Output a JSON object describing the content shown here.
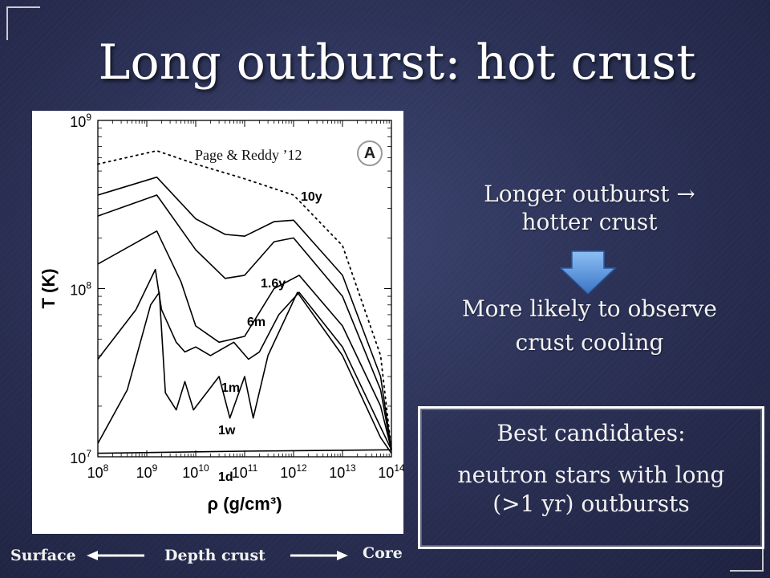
{
  "slide": {
    "title": "Long outburst: hot crust",
    "citation": "Page & Reddy ’12",
    "panel_badge": "A",
    "text_lines": [
      "Longer outburst →",
      "hotter crust",
      "More likely to observe",
      "crust cooling"
    ],
    "candidates": {
      "title": "Best candidates:",
      "line1": "neutron stars with long",
      "line2": "(>1 yr) outbursts"
    },
    "bottom_labels": {
      "surface": "Surface",
      "depth": "Depth crust",
      "core": "Core"
    },
    "colors": {
      "background": "#2c3257",
      "arrow_fill": "#4f8ed8",
      "text": "#ffffff"
    }
  },
  "chart_data": {
    "type": "line",
    "xlabel": "ρ (g/cm³)",
    "ylabel": "T (K)",
    "x_scale": "log",
    "y_scale": "log",
    "xlim": [
      100000000.0,
      100000000000000.0
    ],
    "ylim": [
      10000000.0,
      1000000000.0
    ],
    "x_tick_labels": [
      "10^8",
      "10^9",
      "10^10",
      "10^11",
      "10^12",
      "10^13",
      "10^14"
    ],
    "y_tick_labels": [
      "10^7",
      "10^8",
      "10^9"
    ],
    "series": [
      {
        "name": "10y",
        "style": "dotted",
        "points": [
          [
            100000000.0,
            550000000.0
          ],
          [
            1600000000.0,
            660000000.0
          ],
          [
            10000000000.0,
            550000000.0
          ],
          [
            100000000000.0,
            450000000.0
          ],
          [
            1000000000000.0,
            360000000.0
          ],
          [
            10000000000000.0,
            180000000.0
          ],
          [
            60000000000000.0,
            40000000.0
          ],
          [
            100000000000000.0,
            11000000.0
          ]
        ]
      },
      {
        "name": "1.6y",
        "style": "solid",
        "points": [
          [
            100000000.0,
            360000000.0
          ],
          [
            1600000000.0,
            460000000.0
          ],
          [
            10000000000.0,
            260000000.0
          ],
          [
            40000000000.0,
            210000000.0
          ],
          [
            100000000000.0,
            205000000.0
          ],
          [
            400000000000.0,
            250000000.0
          ],
          [
            1000000000000.0,
            255000000.0
          ],
          [
            10000000000000.0,
            120000000.0
          ],
          [
            60000000000000.0,
            30000000.0
          ],
          [
            100000000000000.0,
            11000000.0
          ]
        ]
      },
      {
        "name": "6m",
        "style": "solid",
        "points": [
          [
            100000000.0,
            270000000.0
          ],
          [
            1600000000.0,
            360000000.0
          ],
          [
            10000000000.0,
            170000000.0
          ],
          [
            40000000000.0,
            115000000.0
          ],
          [
            100000000000.0,
            120000000.0
          ],
          [
            400000000000.0,
            190000000.0
          ],
          [
            1000000000000.0,
            200000000.0
          ],
          [
            10000000000000.0,
            90000000.0
          ],
          [
            60000000000000.0,
            25000000.0
          ],
          [
            100000000000000.0,
            11000000.0
          ]
        ]
      },
      {
        "name": "1m",
        "style": "solid",
        "points": [
          [
            100000000.0,
            140000000.0
          ],
          [
            1600000000.0,
            220000000.0
          ],
          [
            5000000000.0,
            110000000.0
          ],
          [
            10000000000.0,
            60000000.0
          ],
          [
            30000000000.0,
            48000000.0
          ],
          [
            100000000000.0,
            52000000.0
          ],
          [
            400000000000.0,
            100000000.0
          ],
          [
            1300000000000.0,
            120000000.0
          ],
          [
            10000000000000.0,
            60000000.0
          ],
          [
            60000000000000.0,
            20000000.0
          ],
          [
            100000000000000.0,
            11000000.0
          ]
        ]
      },
      {
        "name": "1w",
        "style": "solid",
        "points": [
          [
            100000000.0,
            38000000.0
          ],
          [
            600000000.0,
            75000000.0
          ],
          [
            1500000000.0,
            130000000.0
          ],
          [
            2000000000.0,
            75000000.0
          ],
          [
            4000000000.0,
            48000000.0
          ],
          [
            6000000000.0,
            42000000.0
          ],
          [
            10000000000.0,
            45000000.0
          ],
          [
            20000000000.0,
            40000000.0
          ],
          [
            60000000000.0,
            48000000.0
          ],
          [
            120000000000.0,
            38000000.0
          ],
          [
            200000000000.0,
            42000000.0
          ],
          [
            500000000000.0,
            70000000.0
          ],
          [
            1300000000000.0,
            95000000.0
          ],
          [
            10000000000000.0,
            45000000.0
          ],
          [
            60000000000000.0,
            15000000.0
          ],
          [
            100000000000000.0,
            11000000.0
          ]
        ]
      },
      {
        "name": "1d",
        "style": "solid",
        "points": [
          [
            100000000.0,
            12000000.0
          ],
          [
            400000000.0,
            25000000.0
          ],
          [
            1200000000.0,
            80000000.0
          ],
          [
            1800000000.0,
            95000000.0
          ],
          [
            2400000000.0,
            24000000.0
          ],
          [
            4000000000.0,
            19000000.0
          ],
          [
            6000000000.0,
            28000000.0
          ],
          [
            9000000000.0,
            19000000.0
          ],
          [
            30000000000.0,
            30000000.0
          ],
          [
            50000000000.0,
            17000000.0
          ],
          [
            100000000000.0,
            30000000.0
          ],
          [
            150000000000.0,
            17000000.0
          ],
          [
            300000000000.0,
            40000000.0
          ],
          [
            1200000000000.0,
            95000000.0
          ],
          [
            10000000000000.0,
            40000000.0
          ],
          [
            60000000000000.0,
            13000000.0
          ],
          [
            100000000000000.0,
            10500000.0
          ]
        ]
      },
      {
        "name": "",
        "style": "solid",
        "points": [
          [
            100000000.0,
            10500000.0
          ],
          [
            100000000000.0,
            10800000.0
          ],
          [
            100000000000000.0,
            11000000.0
          ]
        ]
      }
    ]
  }
}
